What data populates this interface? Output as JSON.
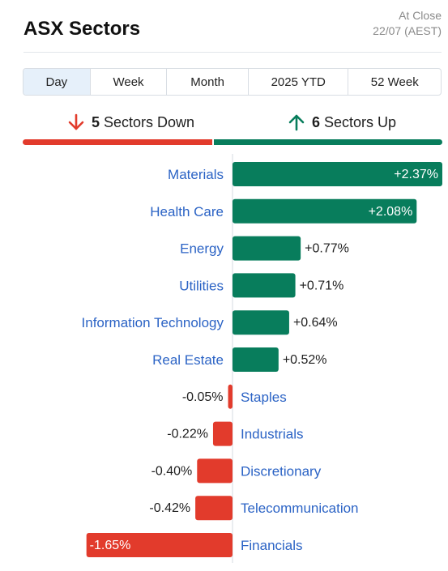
{
  "header": {
    "title": "ASX Sectors",
    "close_line1": "At Close",
    "close_line2": "22/07 (AEST)"
  },
  "tabs": [
    {
      "label": "Day",
      "active": true
    },
    {
      "label": "Week"
    },
    {
      "label": "Month"
    },
    {
      "label": "2025 YTD"
    },
    {
      "label": "52 Week"
    }
  ],
  "summary": {
    "down_count": "5",
    "down_text": "Sectors Down",
    "up_count": "6",
    "up_text": "Sectors Up",
    "down_icon": "arrow-down-icon",
    "up_icon": "arrow-up-icon"
  },
  "colors": {
    "up": "#087d5c",
    "down": "#e23b2c",
    "label": "#2b63c5"
  },
  "chart_data": {
    "type": "bar",
    "categories": [
      "Materials",
      "Health Care",
      "Energy",
      "Utilities",
      "Information Technology",
      "Real Estate",
      "Staples",
      "Industrials",
      "Discretionary",
      "Telecommunication",
      "Financials"
    ],
    "values": [
      2.37,
      2.08,
      0.77,
      0.71,
      0.64,
      0.52,
      -0.05,
      -0.22,
      -0.4,
      -0.42,
      -1.65
    ],
    "value_labels": [
      "+2.37%",
      "+2.08%",
      "+0.77%",
      "+0.71%",
      "+0.64%",
      "+0.52%",
      "-0.05%",
      "-0.22%",
      "-0.40%",
      "-0.42%",
      "-1.65%"
    ],
    "orientation": "horizontal",
    "unit": "%"
  }
}
